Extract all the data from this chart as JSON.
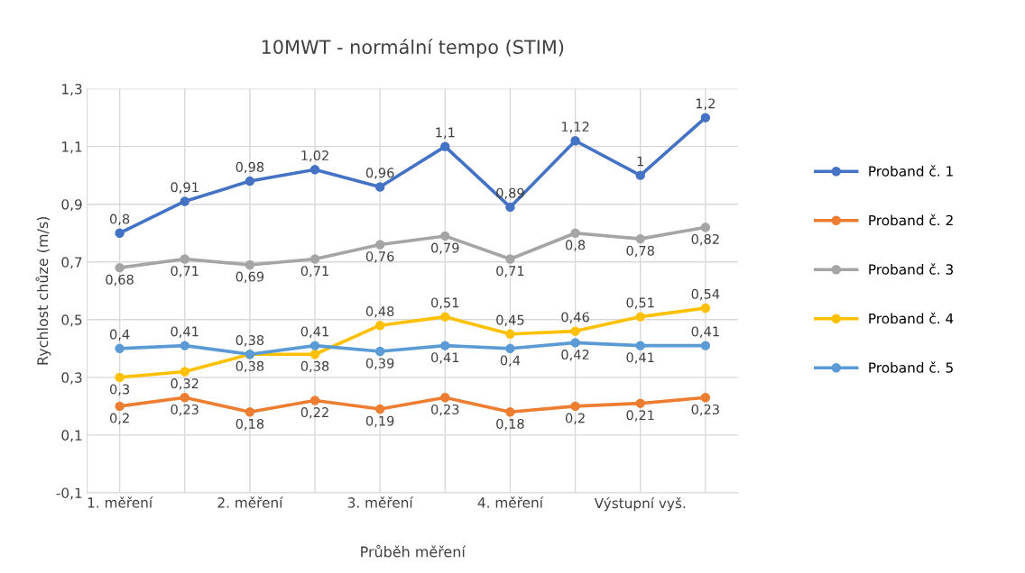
{
  "chart_data": {
    "type": "line",
    "title": "10MWT - normální tempo (STIM)",
    "xlabel": "Průběh měření",
    "ylabel": "Rychlost chůze (m/s)",
    "categories": [
      "1. měření",
      null,
      "2. měření",
      null,
      "3. měření",
      null,
      "4. měření",
      null,
      "Výstupní vyš.",
      null
    ],
    "ylim": [
      -0.1,
      1.3
    ],
    "yticks": [
      {
        "value": -0.1,
        "label": "-0,1"
      },
      {
        "value": 0.1,
        "label": "0,1"
      },
      {
        "value": 0.3,
        "label": "0,3"
      },
      {
        "value": 0.5,
        "label": "0,5"
      },
      {
        "value": 0.7,
        "label": "0,7"
      },
      {
        "value": 0.9,
        "label": "0,9"
      },
      {
        "value": 1.1,
        "label": "1,1"
      },
      {
        "value": 1.3,
        "label": "1,3"
      }
    ],
    "grid": true,
    "legend": "right",
    "marker": "circle",
    "line_style": "solid",
    "series": [
      {
        "name": "Proband č. 1",
        "color": "#4472c4",
        "values": [
          0.8,
          0.91,
          0.98,
          1.02,
          0.96,
          1.1,
          0.89,
          1.12,
          1,
          1.2
        ],
        "value_labels": [
          "0,8",
          "0,91",
          "0,98",
          "1,02",
          "0,96",
          "1,1",
          "0,89",
          "1,12",
          "1",
          "1,2"
        ]
      },
      {
        "name": "Proband č. 2",
        "color": "#ed7d31",
        "values": [
          0.2,
          0.23,
          0.18,
          0.22,
          0.19,
          0.23,
          0.18,
          0.2,
          0.21,
          0.23
        ],
        "value_labels": [
          "0,2",
          "0,23",
          "0,18",
          "0,22",
          "0,19",
          "0,23",
          "0,18",
          "0,2",
          "0,21",
          "0,23"
        ]
      },
      {
        "name": "Proband č. 3",
        "color": "#a5a5a5",
        "values": [
          0.68,
          0.71,
          0.69,
          0.71,
          0.76,
          0.79,
          0.71,
          0.8,
          0.78,
          0.82
        ],
        "value_labels": [
          "0,68",
          "0,71",
          "0,69",
          "0,71",
          "0,76",
          "0,79",
          "0,71",
          "0,8",
          "0,78",
          "0,82"
        ]
      },
      {
        "name": "Proband č. 4",
        "color": "#ffc000",
        "values": [
          0.3,
          0.32,
          0.38,
          0.38,
          0.48,
          0.51,
          0.45,
          0.46,
          0.51,
          0.54
        ],
        "value_labels": [
          "0,3",
          "0,32",
          "0,38",
          "0,38",
          "0,48",
          "0,51",
          "0,45",
          "0,46",
          "0,51",
          "0,54"
        ]
      },
      {
        "name": "Proband č. 5",
        "color": "#5b9bd5",
        "values": [
          0.4,
          0.41,
          0.38,
          0.41,
          0.39,
          0.41,
          0.4,
          0.42,
          0.41,
          0.41
        ],
        "value_labels": [
          "0,4",
          "0,41",
          "0,38",
          "0,41",
          "0,39",
          "0,41",
          "0,4",
          "0,42",
          "0,41",
          "0,41"
        ]
      }
    ]
  }
}
